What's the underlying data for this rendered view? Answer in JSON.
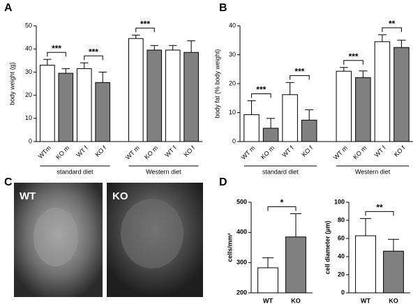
{
  "chart_data": [
    {
      "type": "bar",
      "panel_label": "A",
      "ylabel": "body weight (g)",
      "categories": [
        "WTm",
        "KO m",
        "WT f",
        "KO f",
        "WT m",
        "KO m",
        "WT f",
        "KO f"
      ],
      "groups": [
        "standard diet",
        "Western diet"
      ],
      "values": [
        33,
        29.5,
        31.5,
        25.5,
        44.5,
        39.5,
        39.5,
        38.5
      ],
      "errors": [
        2.5,
        2,
        2.5,
        4.5,
        1.5,
        2,
        2,
        5
      ],
      "colors": [
        "#ffffff",
        "#808080",
        "#ffffff",
        "#808080",
        "#ffffff",
        "#808080",
        "#ffffff",
        "#808080"
      ],
      "significance": [
        "***",
        "***",
        "***"
      ],
      "ylim": [
        0,
        50
      ],
      "yticks": [
        0,
        10,
        20,
        30,
        40,
        50
      ]
    },
    {
      "type": "bar",
      "panel_label": "B",
      "ylabel": "body fat (% body weight)",
      "categories": [
        "WT m",
        "KO m",
        "WT f",
        "KO f",
        "WT m",
        "KO m",
        "WT f",
        "KO f"
      ],
      "groups": [
        "standard diet",
        "Western diet"
      ],
      "values": [
        9.3,
        4.6,
        16.2,
        7.4,
        24.3,
        22.1,
        34.5,
        32.5
      ],
      "errors": [
        4.8,
        3.4,
        4.2,
        3.6,
        1.3,
        2.3,
        2.4,
        2.5
      ],
      "colors": [
        "#ffffff",
        "#808080",
        "#ffffff",
        "#808080",
        "#ffffff",
        "#808080",
        "#ffffff",
        "#808080"
      ],
      "significance": [
        "***",
        "***",
        "***",
        "**"
      ],
      "ylim": [
        0,
        40
      ],
      "yticks": [
        0,
        10,
        20,
        30,
        40
      ]
    },
    {
      "type": "bar",
      "panel_label": "D",
      "ylabel": "cells/mm²",
      "categories": [
        "WT",
        "KO"
      ],
      "values": [
        283,
        385
      ],
      "errors": [
        33,
        77
      ],
      "colors": [
        "#ffffff",
        "#808080"
      ],
      "significance": [
        "*"
      ],
      "ylim": [
        200,
        500
      ],
      "yticks": [
        200,
        300,
        400,
        500
      ]
    },
    {
      "type": "bar",
      "ylabel": "cell diameter (µm)",
      "categories": [
        "WT",
        "KO"
      ],
      "values": [
        63,
        46
      ],
      "errors": [
        19,
        13
      ],
      "colors": [
        "#ffffff",
        "#808080"
      ],
      "significance": [
        "**"
      ],
      "ylim": [
        0,
        100
      ],
      "yticks": [
        0,
        20,
        40,
        60,
        80,
        100
      ]
    }
  ],
  "images": {
    "panel_label": "C",
    "labels": [
      "WT",
      "KO"
    ]
  }
}
